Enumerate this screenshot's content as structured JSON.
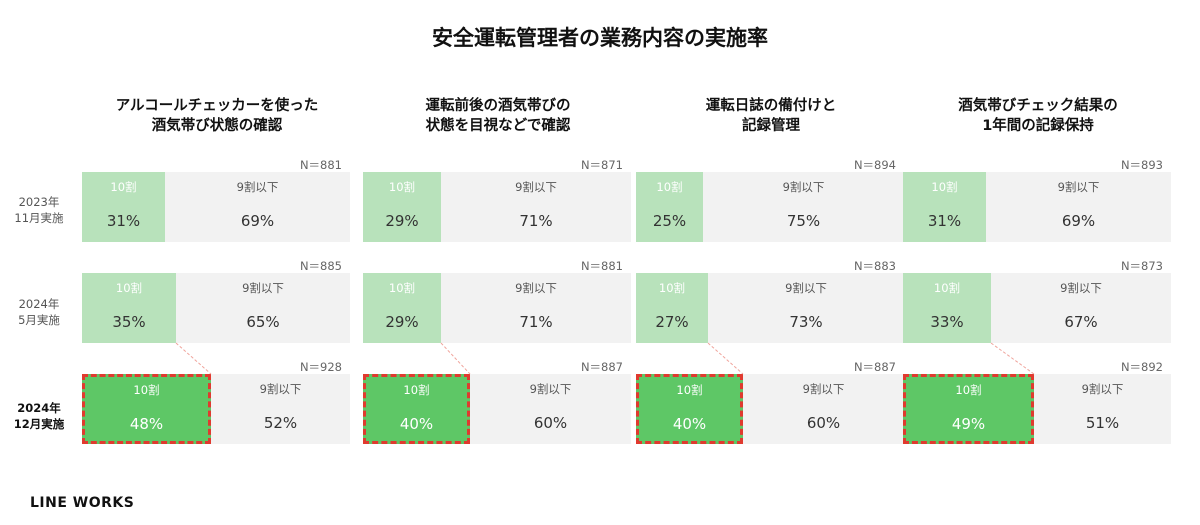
{
  "title": "安全運転管理者の業務内容の実施率",
  "logo": "LINE WORKS",
  "chart_data": {
    "type": "bar",
    "layout": "stacked-100-percent",
    "segment_labels": [
      "10割",
      "9割以下"
    ],
    "rows": [
      {
        "lines": [
          "2023年",
          "11月実施"
        ],
        "current": false
      },
      {
        "lines": [
          "2024年",
          "5月実施"
        ],
        "current": false
      },
      {
        "lines": [
          "2024年",
          "12月実施"
        ],
        "current": true
      }
    ],
    "columns": [
      {
        "title_lines": [
          "アルコールチェッカーを使った",
          "酒気帯び状態の確認"
        ],
        "panels": [
          {
            "n": "N＝881",
            "a_value": 31,
            "a_text": "31%",
            "b_text": "69%"
          },
          {
            "n": "N＝885",
            "a_value": 35,
            "a_text": "35%",
            "b_text": "65%"
          },
          {
            "n": "N＝928",
            "a_value": 48,
            "a_text": "48%",
            "b_text": "52%"
          }
        ]
      },
      {
        "title_lines": [
          "運転前後の酒気帯びの",
          "状態を目視などで確認"
        ],
        "panels": [
          {
            "n": "N＝871",
            "a_value": 29,
            "a_text": "29%",
            "b_text": "71%"
          },
          {
            "n": "N＝881",
            "a_value": 29,
            "a_text": "29%",
            "b_text": "71%"
          },
          {
            "n": "N＝887",
            "a_value": 40,
            "a_text": "40%",
            "b_text": "60%"
          }
        ]
      },
      {
        "title_lines": [
          "運転日誌の備付けと",
          "記録管理"
        ],
        "panels": [
          {
            "n": "N＝894",
            "a_value": 25,
            "a_text": "25%",
            "b_text": "75%"
          },
          {
            "n": "N＝883",
            "a_value": 27,
            "a_text": "27%",
            "b_text": "73%"
          },
          {
            "n": "N＝887",
            "a_value": 40,
            "a_text": "40%",
            "b_text": "60%"
          }
        ]
      },
      {
        "title_lines": [
          "酒気帯びチェック結果の",
          "1年間の記録保持"
        ],
        "panels": [
          {
            "n": "N＝893",
            "a_value": 31,
            "a_text": "31%",
            "b_text": "69%"
          },
          {
            "n": "N＝873",
            "a_value": 33,
            "a_text": "33%",
            "b_text": "67%"
          },
          {
            "n": "N＝892",
            "a_value": 49,
            "a_text": "49%",
            "b_text": "51%"
          }
        ]
      }
    ],
    "colors": {
      "a_past": "#b8e2bb",
      "a_current": "#5ec766",
      "b": "#f2f2f2",
      "highlight_border": "#e03a2f"
    }
  }
}
